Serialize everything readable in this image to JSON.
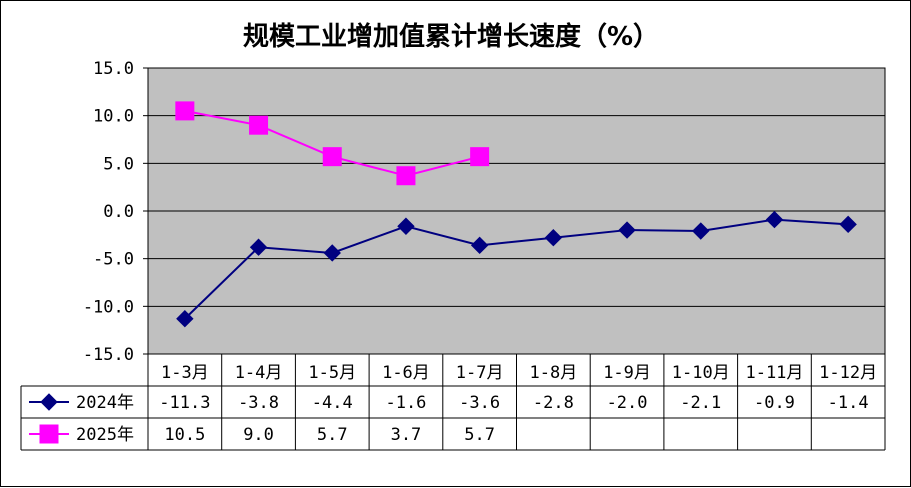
{
  "chart_data": {
    "type": "line",
    "title": "规模工业增加值累计增长速度（%）",
    "categories": [
      "1-3月",
      "1-4月",
      "1-5月",
      "1-6月",
      "1-7月",
      "1-8月",
      "1-9月",
      "1-10月",
      "1-11月",
      "1-12月"
    ],
    "series": [
      {
        "name": "2024年",
        "color": "#000080",
        "marker": "diamond",
        "values": [
          -11.3,
          -3.8,
          -4.4,
          -1.6,
          -3.6,
          -2.8,
          -2.0,
          -2.1,
          -0.9,
          -1.4
        ],
        "labels": [
          "-11.3",
          "-3.8",
          "-4.4",
          "-1.6",
          "-3.6",
          "-2.8",
          "-2.0",
          "-2.1",
          "-0.9",
          "-1.4"
        ]
      },
      {
        "name": "2025年",
        "color": "#FF00FF",
        "marker": "square",
        "values": [
          10.5,
          9.0,
          5.7,
          3.7,
          5.7,
          null,
          null,
          null,
          null,
          null
        ],
        "labels": [
          "10.5",
          "9.0",
          "5.7",
          "3.7",
          "5.7",
          "",
          "",
          "",
          "",
          ""
        ]
      }
    ],
    "ylim": [
      -15,
      15
    ],
    "yticks": [
      15,
      10,
      5,
      0,
      -5,
      -10,
      -15
    ],
    "ytick_labels": [
      "15.0",
      "10.0",
      "5.0",
      "0.0",
      "-5.0",
      "-10.0",
      "-15.0"
    ],
    "plot_background": "#C0C0C0",
    "grid": true,
    "legend": "data-table"
  }
}
